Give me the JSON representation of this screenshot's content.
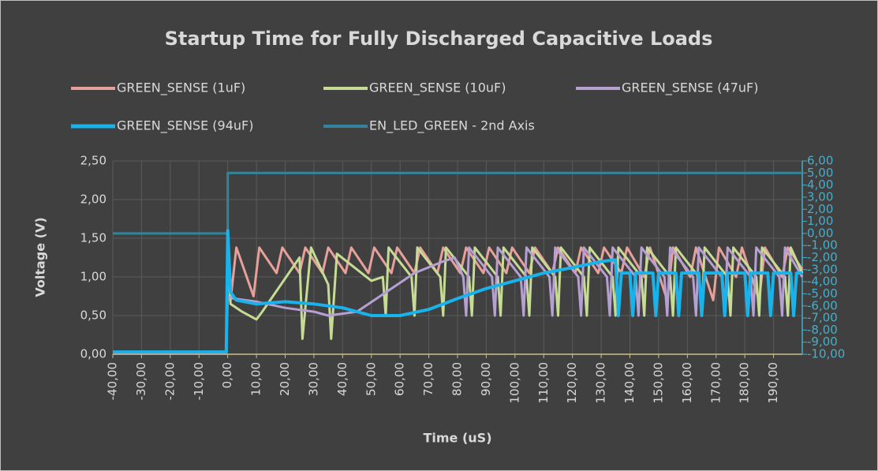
{
  "chart_data": {
    "type": "line",
    "title": "Startup Time for Fully Discharged Capacitive Loads",
    "xlabel": "Time (uS)",
    "ylabel": "Voltage (V)",
    "xlim": [
      -40,
      200
    ],
    "ylim": [
      0,
      2.5
    ],
    "y2lim": [
      -10,
      6
    ],
    "grid": true,
    "legend": "top",
    "xticks": [
      {
        "value": -40,
        "label": "-40,00"
      },
      {
        "value": -30,
        "label": "-30,00"
      },
      {
        "value": -20,
        "label": "-20,00"
      },
      {
        "value": -10,
        "label": "-10,00"
      },
      {
        "value": 0,
        "label": "0,00"
      },
      {
        "value": 10,
        "label": "10,00"
      },
      {
        "value": 20,
        "label": "20,00"
      },
      {
        "value": 30,
        "label": "30,00"
      },
      {
        "value": 40,
        "label": "40,00"
      },
      {
        "value": 50,
        "label": "50,00"
      },
      {
        "value": 60,
        "label": "60,00"
      },
      {
        "value": 70,
        "label": "70,00"
      },
      {
        "value": 80,
        "label": "80,00"
      },
      {
        "value": 90,
        "label": "90,00"
      },
      {
        "value": 100,
        "label": "100,00"
      },
      {
        "value": 110,
        "label": "110,00"
      },
      {
        "value": 120,
        "label": "120,00"
      },
      {
        "value": 130,
        "label": "130,00"
      },
      {
        "value": 140,
        "label": "140,00"
      },
      {
        "value": 150,
        "label": "150,00"
      },
      {
        "value": 160,
        "label": "160,00"
      },
      {
        "value": 170,
        "label": "170,00"
      },
      {
        "value": 180,
        "label": "180,00"
      },
      {
        "value": 190,
        "label": "190,00"
      }
    ],
    "yticks": [
      {
        "value": 0,
        "label": "0,00"
      },
      {
        "value": 0.5,
        "label": "0,50"
      },
      {
        "value": 1,
        "label": "1,00"
      },
      {
        "value": 1.5,
        "label": "1,50"
      },
      {
        "value": 2,
        "label": "2,00"
      },
      {
        "value": 2.5,
        "label": "2,50"
      }
    ],
    "y2ticks": [
      {
        "value": -10,
        "label": "-10,00"
      },
      {
        "value": -9,
        "label": "-9,00"
      },
      {
        "value": -8,
        "label": "-8,00"
      },
      {
        "value": -7,
        "label": "-7,00"
      },
      {
        "value": -6,
        "label": "-6,00"
      },
      {
        "value": -5,
        "label": "-5,00"
      },
      {
        "value": -4,
        "label": "-4,00"
      },
      {
        "value": -3,
        "label": "-3,00"
      },
      {
        "value": -2,
        "label": "-2,00"
      },
      {
        "value": -1,
        "label": "-1,00"
      },
      {
        "value": 0,
        "label": "0,00"
      },
      {
        "value": 1,
        "label": "1,00"
      },
      {
        "value": 2,
        "label": "2,00"
      },
      {
        "value": 3,
        "label": "3,00"
      },
      {
        "value": 4,
        "label": "4,00"
      },
      {
        "value": 5,
        "label": "5,00"
      },
      {
        "value": 6,
        "label": "6,00"
      }
    ],
    "series": [
      {
        "name": "GREEN_SENSE (1uF)",
        "color": "#e8a09a",
        "x": [
          -40,
          -0.5,
          0,
          1,
          3,
          9,
          11,
          17,
          19,
          25,
          27,
          33,
          35,
          41,
          43,
          49,
          51,
          57,
          59,
          65,
          67,
          73,
          75,
          81,
          83,
          89,
          91,
          97,
          99,
          105,
          107,
          113,
          115,
          121,
          123,
          129,
          131,
          137,
          139,
          145,
          147,
          153,
          155,
          161,
          163,
          169,
          171,
          177,
          179,
          185,
          187,
          193,
          195,
          200
        ],
        "values": [
          0.02,
          0.02,
          1.6,
          0.7,
          1.38,
          0.75,
          1.38,
          1.05,
          1.38,
          1.05,
          1.38,
          1.05,
          1.38,
          1.05,
          1.38,
          1.05,
          1.38,
          1.05,
          1.38,
          1.05,
          1.38,
          1.05,
          1.38,
          1.05,
          1.38,
          1.05,
          1.38,
          1.05,
          1.38,
          1.05,
          1.38,
          1.05,
          1.38,
          1.05,
          1.38,
          1.05,
          1.38,
          1.05,
          1.38,
          1.0,
          1.38,
          0.7,
          1.38,
          1.0,
          1.38,
          0.7,
          1.38,
          1.0,
          1.38,
          0.7,
          1.38,
          1.0,
          1.38,
          1.1
        ]
      },
      {
        "name": "GREEN_SENSE (10uF)",
        "color": "#c6dc94",
        "x": [
          -40,
          -0.5,
          0,
          1,
          5,
          10,
          12,
          25,
          26,
          29,
          35,
          36,
          38,
          50,
          54,
          55,
          56,
          64,
          65,
          66,
          74,
          75,
          76,
          84,
          85,
          86,
          94,
          95,
          96,
          104,
          105,
          106,
          114,
          115,
          116,
          124,
          125,
          126,
          134,
          135,
          136,
          144,
          145,
          146,
          154,
          155,
          156,
          164,
          165,
          166,
          174,
          175,
          176,
          184,
          185,
          186,
          194,
          195,
          196,
          200
        ],
        "values": [
          0.03,
          0.03,
          1.2,
          0.65,
          0.55,
          0.45,
          0.55,
          1.25,
          0.2,
          1.38,
          0.9,
          0.2,
          1.3,
          0.95,
          1.0,
          0.5,
          1.38,
          1.0,
          0.5,
          1.38,
          1.0,
          0.5,
          1.38,
          1.0,
          0.5,
          1.38,
          1.0,
          0.5,
          1.38,
          1.0,
          0.5,
          1.38,
          1.0,
          0.5,
          1.38,
          1.0,
          0.5,
          1.38,
          1.0,
          0.5,
          1.38,
          1.0,
          0.5,
          1.38,
          1.0,
          0.5,
          1.38,
          1.0,
          0.5,
          1.38,
          1.0,
          0.5,
          1.38,
          1.0,
          0.5,
          1.38,
          1.0,
          0.5,
          1.38,
          1.05
        ]
      },
      {
        "name": "GREEN_SENSE (47uF)",
        "color": "#b6a0d2",
        "x": [
          -40,
          -0.5,
          0,
          2,
          10,
          20,
          30,
          35,
          45,
          55,
          65,
          75,
          79,
          82,
          83,
          84,
          92,
          93,
          94,
          102,
          103,
          104,
          112,
          113,
          114,
          122,
          123,
          124,
          132,
          133,
          134,
          142,
          143,
          144,
          152,
          153,
          154,
          162,
          163,
          164,
          172,
          173,
          174,
          182,
          183,
          184,
          192,
          193,
          194,
          200
        ],
        "values": [
          0.02,
          0.02,
          0.75,
          0.72,
          0.68,
          0.6,
          0.55,
          0.5,
          0.55,
          0.8,
          1.05,
          1.2,
          1.25,
          1.0,
          0.5,
          1.38,
          1.0,
          0.5,
          1.38,
          1.0,
          0.5,
          1.38,
          1.0,
          0.5,
          1.38,
          1.0,
          0.5,
          1.38,
          1.0,
          0.5,
          1.38,
          1.0,
          0.5,
          1.38,
          1.0,
          0.5,
          1.38,
          1.0,
          0.5,
          1.38,
          1.0,
          0.5,
          1.38,
          1.0,
          0.5,
          1.38,
          1.0,
          0.5,
          1.38,
          1.0
        ]
      },
      {
        "name": "GREEN_SENSE (94uF)",
        "color": "#1ab2ea",
        "x": [
          -40,
          -0.5,
          0,
          1,
          3,
          10,
          20,
          30,
          40,
          50,
          60,
          70,
          80,
          90,
          100,
          110,
          120,
          130,
          135,
          136,
          137,
          140,
          141,
          142,
          148,
          149,
          150,
          156,
          157,
          158,
          164,
          165,
          166,
          172,
          173,
          174,
          180,
          181,
          182,
          188,
          189,
          190,
          196,
          197,
          198,
          200
        ],
        "values": [
          0.03,
          0.03,
          1.6,
          0.8,
          0.7,
          0.65,
          0.68,
          0.65,
          0.6,
          0.5,
          0.5,
          0.58,
          0.72,
          0.85,
          0.95,
          1.05,
          1.12,
          1.2,
          1.22,
          0.5,
          1.05,
          1.05,
          0.5,
          1.05,
          1.05,
          0.5,
          1.05,
          1.05,
          0.5,
          1.05,
          1.05,
          0.5,
          1.05,
          1.05,
          0.5,
          1.05,
          1.05,
          0.5,
          1.05,
          1.05,
          0.5,
          1.05,
          1.05,
          0.5,
          1.05,
          1.05
        ]
      },
      {
        "name": "EN_LED_GREEN - 2nd Axis",
        "color": "#31859c",
        "axis": "y2",
        "x": [
          -40,
          0,
          0,
          200
        ],
        "values": [
          0,
          0,
          5,
          5
        ]
      }
    ]
  }
}
